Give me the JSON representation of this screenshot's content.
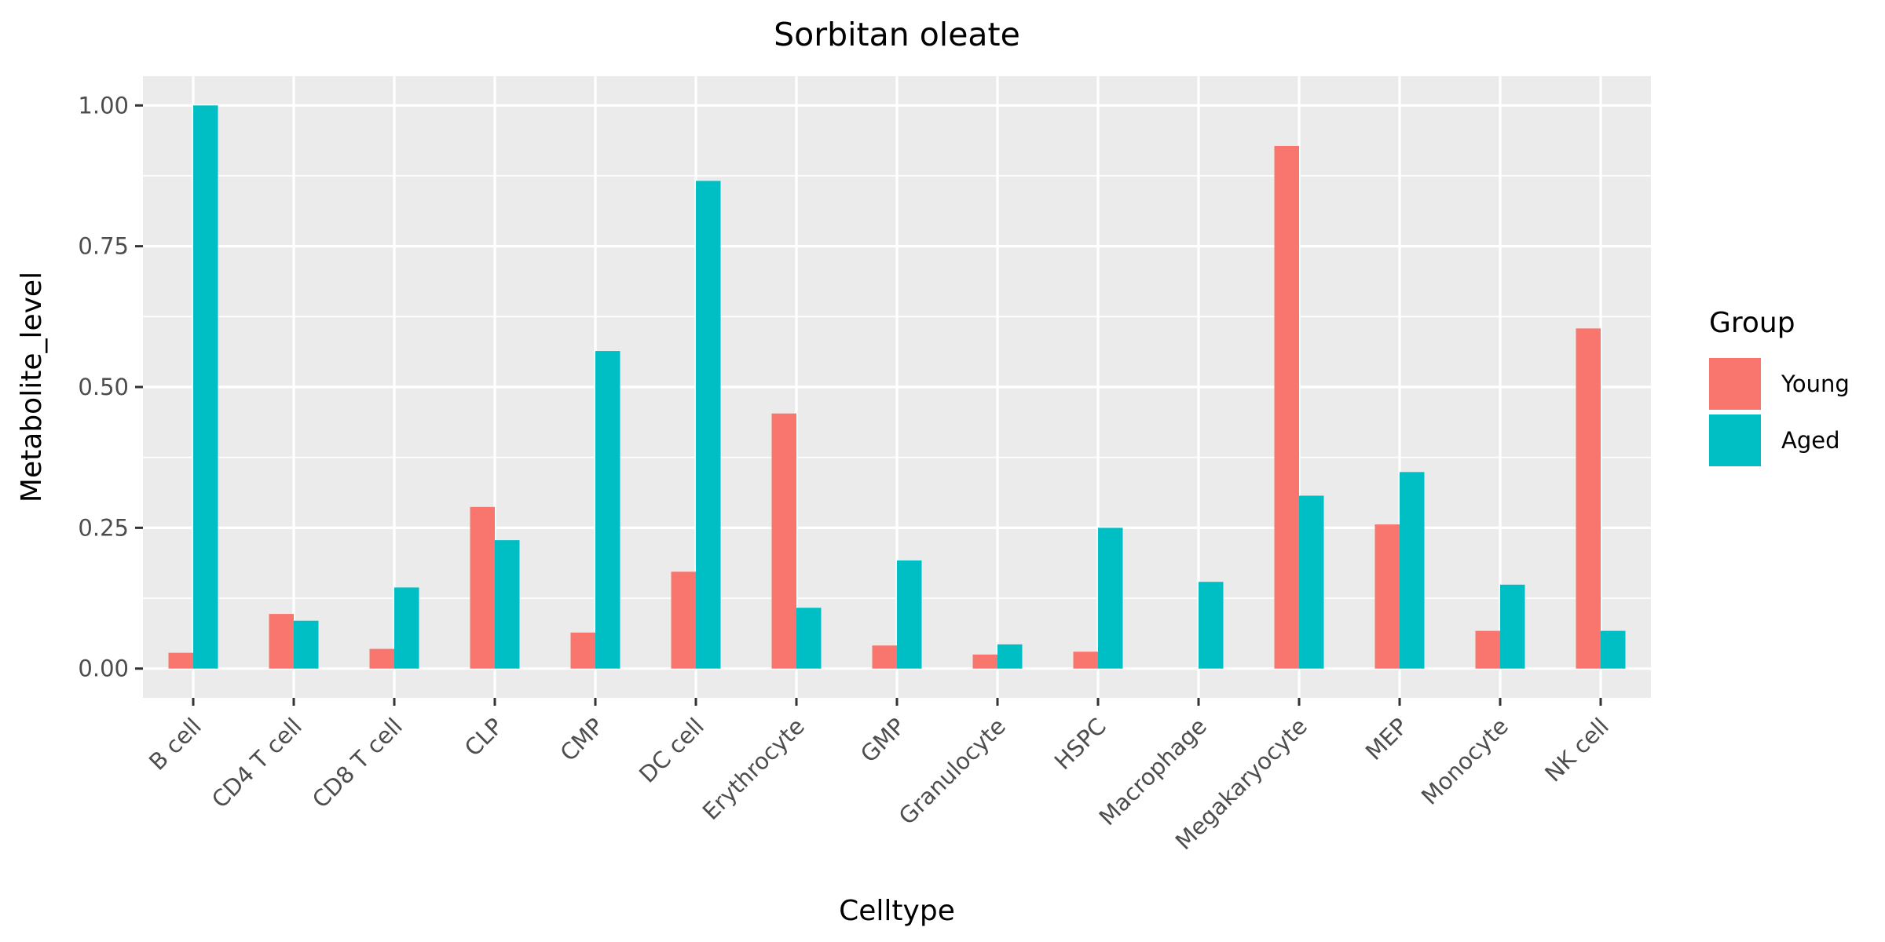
{
  "chart_data": {
    "type": "bar",
    "title": "Sorbitan oleate",
    "xlabel": "Celltype",
    "ylabel": "Metabolite_level",
    "categories": [
      "B cell",
      "CD4 T cell",
      "CD8 T cell",
      "CLP",
      "CMP",
      "DC cell",
      "Erythrocyte",
      "GMP",
      "Granulocyte",
      "HSPC",
      "Macrophage",
      "Megakaryocyte",
      "MEP",
      "Monocyte",
      "NK cell"
    ],
    "series": [
      {
        "name": "Young",
        "color": "#F8766D",
        "values": [
          0.028,
          0.097,
          0.035,
          0.287,
          0.064,
          0.172,
          0.453,
          0.041,
          0.025,
          0.03,
          null,
          0.928,
          0.256,
          0.067,
          0.604
        ]
      },
      {
        "name": "Aged",
        "color": "#00BFC4",
        "values": [
          1.0,
          0.085,
          0.144,
          0.228,
          0.564,
          0.866,
          0.108,
          0.192,
          0.043,
          0.25,
          0.154,
          0.307,
          0.349,
          0.149,
          0.067
        ]
      }
    ],
    "ylim": [
      -0.052,
      1.052
    ],
    "yticks": [
      "0.00",
      "0.25",
      "0.50",
      "0.75",
      "1.00"
    ],
    "ytick_values": [
      0,
      0.25,
      0.5,
      0.75,
      1.0
    ],
    "grid": true,
    "panel_background": "#EBEBEB",
    "legend": {
      "title": "Group",
      "position": "right"
    }
  }
}
